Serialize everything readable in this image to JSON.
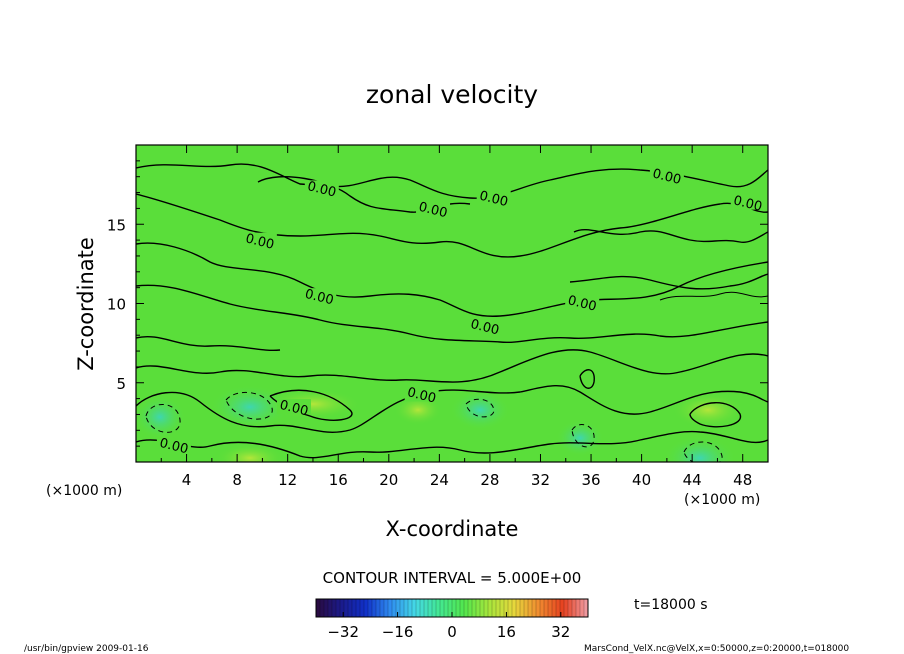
{
  "chart_data": {
    "type": "contour",
    "title": "zonal velocity",
    "xlabel": "X-coordinate",
    "ylabel": "Z-coordinate",
    "x_unit_left": "(×1000 m)",
    "x_unit_right": "(×1000 m)",
    "xlim": [
      0,
      50
    ],
    "ylim": [
      0,
      20
    ],
    "x_ticks": [
      4,
      8,
      12,
      16,
      20,
      24,
      28,
      32,
      36,
      40,
      44,
      48
    ],
    "x_tick_labels": [
      "4",
      "8",
      "12",
      "16",
      "20",
      "24",
      "28",
      "32",
      "36",
      "40",
      "44",
      "48"
    ],
    "y_ticks": [
      5,
      10,
      15
    ],
    "y_tick_labels": [
      "5",
      "10",
      "15"
    ],
    "contour_interval_text": "CONTOUR INTERVAL = 5.000E+00",
    "contour_level_label": "0.00",
    "contour_labels": [
      {
        "text": "0.00",
        "x": 14.7,
        "z": 17.2
      },
      {
        "text": "0.00",
        "x": 23.5,
        "z": 15.9
      },
      {
        "text": "0.00",
        "x": 28.3,
        "z": 16.6
      },
      {
        "text": "0.00",
        "x": 42.0,
        "z": 18.0
      },
      {
        "text": "0.00",
        "x": 48.4,
        "z": 16.3
      },
      {
        "text": "0.00",
        "x": 9.8,
        "z": 13.9
      },
      {
        "text": "0.00",
        "x": 14.5,
        "z": 10.4
      },
      {
        "text": "0.00",
        "x": 27.6,
        "z": 8.5
      },
      {
        "text": "0.00",
        "x": 35.3,
        "z": 10.0
      },
      {
        "text": "0.00",
        "x": 22.6,
        "z": 4.2
      },
      {
        "text": "0.00",
        "x": 12.5,
        "z": 3.4
      },
      {
        "text": "0.00",
        "x": 3.0,
        "z": 1.0
      }
    ],
    "colorbar": {
      "min": -40,
      "max": 40,
      "ticks": [
        -32,
        -16,
        0,
        16,
        32
      ],
      "tick_labels": [
        "−32",
        "−16",
        "0",
        "16",
        "32"
      ],
      "colors": [
        "#2a0a3d",
        "#1b1a8a",
        "#1030c8",
        "#2f8cf0",
        "#44d8e6",
        "#43e890",
        "#53e64d",
        "#a8e63c",
        "#e6d83c",
        "#f08c30",
        "#e64020",
        "#f0a0a8"
      ]
    },
    "field_color": "#5ade3a",
    "line_color": "#000000"
  },
  "footer": {
    "time": "t=18000 s",
    "left_note": "/usr/bin/gpview  2009-01-16",
    "right_note": "MarsCond_VelX.nc@VelX,x=0:50000,z=0:20000,t=018000"
  }
}
